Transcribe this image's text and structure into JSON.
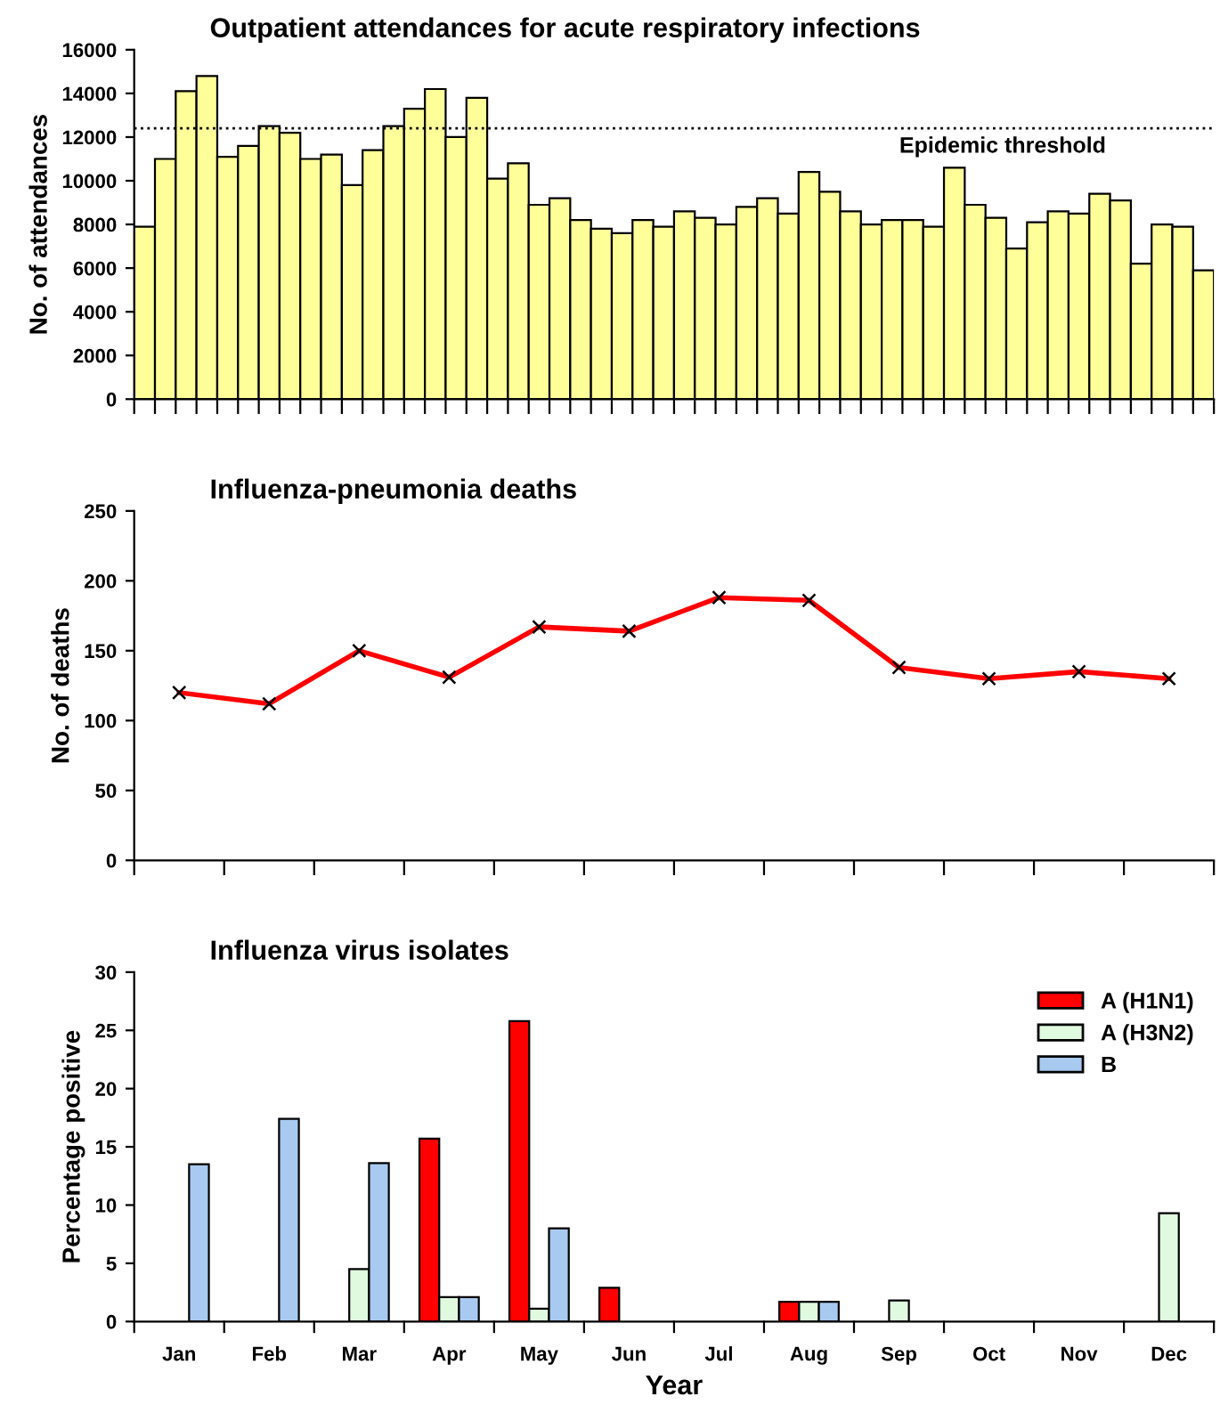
{
  "chart_data": [
    {
      "type": "bar",
      "title": "Outpatient attendances for acute respiratory infections",
      "ylabel": "No. of attendances",
      "categories": [
        null,
        null,
        null,
        null,
        null,
        null,
        null,
        null,
        null,
        null,
        null,
        null,
        null,
        null,
        null,
        null,
        null,
        null,
        null,
        null,
        null,
        null,
        null,
        null,
        null,
        null,
        null,
        null,
        null,
        null,
        null,
        null,
        null,
        null,
        null,
        null,
        null,
        null,
        null,
        null,
        null,
        null,
        null,
        null,
        null,
        null,
        null,
        null,
        null,
        null,
        null,
        null
      ],
      "series": [
        {
          "color": "#ffff99",
          "values": [
            7900,
            11000,
            14100,
            14800,
            11100,
            11600,
            12500,
            12200,
            11000,
            11200,
            9800,
            11400,
            12500,
            13300,
            14200,
            12000,
            13800,
            10100,
            10800,
            8900,
            9200,
            8200,
            7800,
            7600,
            8200,
            7900,
            8600,
            8300,
            8000,
            8800,
            9200,
            8500,
            10400,
            9500,
            8600,
            8000,
            8200,
            8200,
            7900,
            10600,
            8900,
            8300,
            6900,
            8100,
            8600,
            8500,
            9400,
            9100,
            6200,
            8000,
            7900,
            5900
          ]
        }
      ],
      "ylim": [
        0,
        16000
      ],
      "yticks": [
        0,
        2000,
        4000,
        6000,
        8000,
        10000,
        12000,
        14000,
        16000
      ],
      "ref_lines": [
        {
          "axis": "y",
          "value": 12400,
          "label": "Epidemic threshold",
          "color": "#000000",
          "line_style": "dotted"
        }
      ],
      "tick_labels": "y",
      "grid": false,
      "legend": false
    },
    {
      "type": "line",
      "title": "Influenza-pneumonia deaths",
      "ylabel": "No. of deaths",
      "categories": [
        null,
        null,
        null,
        null,
        null,
        null,
        null,
        null,
        null,
        null,
        null,
        null
      ],
      "series": [
        {
          "color": "#ff0000",
          "values": [
            120,
            112,
            150,
            131,
            167,
            164,
            188,
            186,
            138,
            130,
            135,
            130
          ]
        }
      ],
      "ylim": [
        0,
        250
      ],
      "yticks": [
        0,
        50,
        100,
        150,
        200,
        250
      ],
      "marker": "cross",
      "line_style": "solid",
      "tick_labels": "y",
      "grid": false,
      "legend": false
    },
    {
      "type": "bar",
      "title": "Influenza virus isolates",
      "ylabel": "Percentage positive",
      "xlabel": "Year",
      "categories": [
        "Jan",
        "Feb",
        "Mar",
        "Apr",
        "May",
        "Jun",
        "Jul",
        "Aug",
        "Sep",
        "Oct",
        "Nov",
        "Dec"
      ],
      "series": [
        {
          "name": "A (H1N1)",
          "color": "#ff0000",
          "values": [
            null,
            null,
            null,
            15.7,
            25.8,
            2.9,
            null,
            1.7,
            null,
            null,
            null,
            null
          ]
        },
        {
          "name": "A (H3N2)",
          "color": "#e0fae0",
          "values": [
            null,
            null,
            4.5,
            2.1,
            1.1,
            null,
            null,
            1.7,
            1.8,
            null,
            null,
            9.3
          ]
        },
        {
          "name": "B",
          "color": "#a8caf0",
          "values": [
            13.5,
            17.4,
            13.6,
            2.1,
            8.0,
            null,
            null,
            1.7,
            null,
            null,
            null,
            null
          ]
        }
      ],
      "ylim": [
        0,
        30
      ],
      "yticks": [
        0,
        5,
        10,
        15,
        20,
        25,
        30
      ],
      "grid": false,
      "legend": "top right"
    }
  ]
}
